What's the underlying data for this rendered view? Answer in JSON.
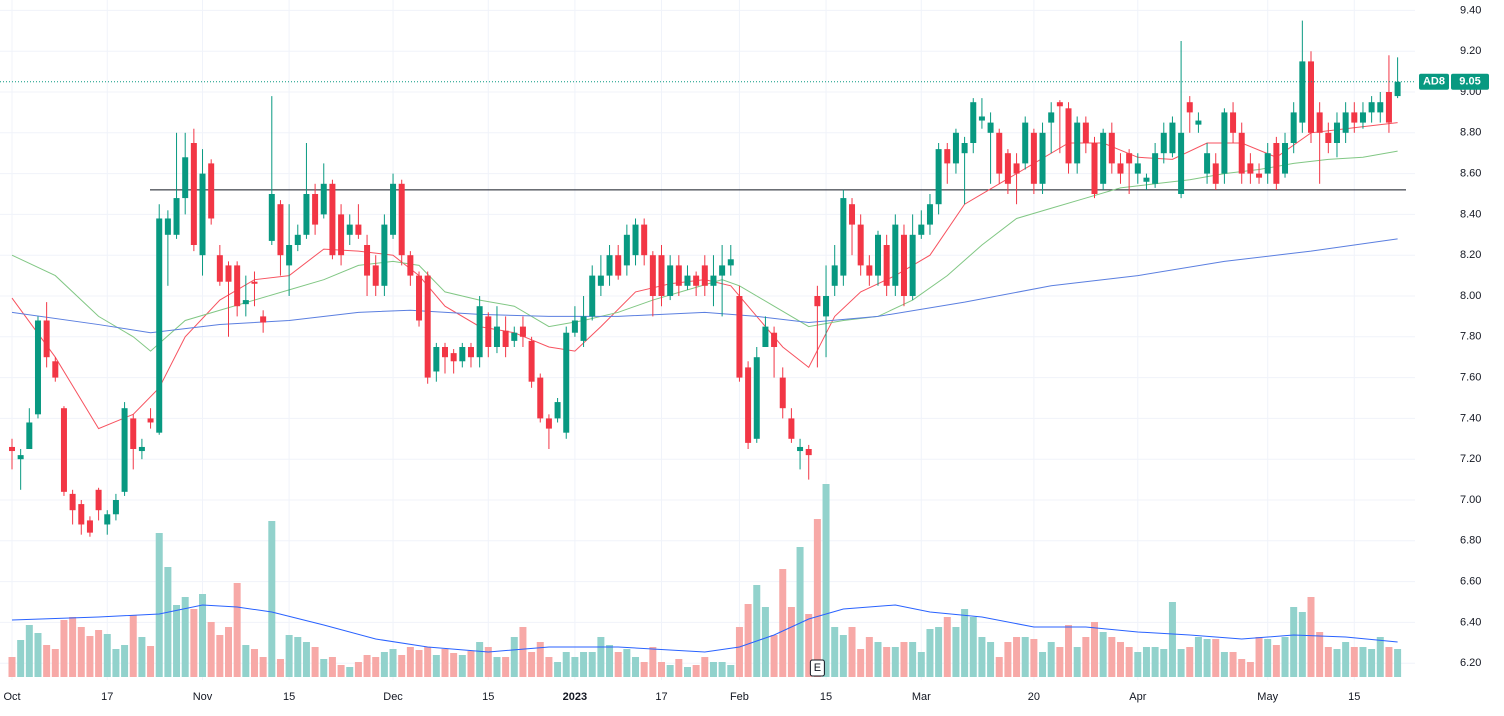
{
  "chart_data": {
    "type": "candlestick",
    "symbol": "AD8",
    "categories": [
      "Oct",
      null,
      null,
      null,
      null,
      null,
      null,
      null,
      null,
      null,
      null,
      "17",
      null,
      null,
      null,
      null,
      null,
      null,
      null,
      null,
      null,
      null,
      "Nov",
      null,
      null,
      null,
      null,
      null,
      null,
      null,
      null,
      null,
      "15",
      null,
      null,
      null,
      null,
      null,
      null,
      null,
      null,
      null,
      null,
      null,
      "Dec",
      null,
      null,
      null,
      null,
      null,
      null,
      null,
      null,
      null,
      null,
      "15",
      null,
      null,
      null,
      null,
      null,
      null,
      null,
      null,
      null,
      "2023",
      null,
      null,
      null,
      null,
      null,
      null,
      null,
      null,
      null,
      "17",
      null,
      null,
      null,
      null,
      null,
      null,
      null,
      null,
      "Feb",
      null,
      null,
      null,
      null,
      null,
      null,
      null,
      null,
      null,
      "15",
      null,
      null,
      null,
      null,
      null,
      null,
      null,
      null,
      null,
      null,
      "Mar",
      null,
      null,
      null,
      null,
      null,
      null,
      null,
      null,
      null,
      null,
      null,
      null,
      "20",
      null,
      null,
      null,
      null,
      null,
      null,
      null,
      null,
      null,
      null,
      null,
      "Apr",
      null,
      null,
      null,
      null,
      null,
      null,
      null,
      null,
      null,
      null,
      null,
      null,
      null,
      null,
      "May",
      null,
      null,
      null,
      null,
      null,
      null,
      null,
      null,
      null,
      "15",
      null,
      null,
      null,
      null,
      null
    ],
    "open": [
      7.26,
      7.2,
      7.25,
      7.42,
      7.88,
      7.68,
      7.45,
      7.03,
      6.98,
      6.9,
      7.05,
      6.88,
      6.93,
      7.04,
      7.4,
      7.24,
      7.4,
      7.33,
      8.3,
      8.3,
      8.48,
      8.75,
      8.2,
      8.65,
      8.2,
      8.15,
      8.15,
      7.96,
      8.07,
      7.9,
      8.27,
      8.45,
      8.15,
      8.25,
      8.3,
      8.5,
      8.4,
      8.55,
      8.4,
      8.3,
      8.35,
      8.25,
      8.15,
      8.05,
      8.3,
      8.55,
      8.2,
      8.1,
      8.1,
      7.63,
      7.75,
      7.72,
      7.68,
      7.75,
      7.7,
      7.9,
      7.75,
      7.83,
      7.78,
      7.85,
      7.78,
      7.6,
      7.4,
      7.4,
      7.33,
      7.82,
      7.78,
      7.9,
      8.05,
      8.1,
      8.2,
      8.15,
      8.2,
      8.35,
      8.2,
      8.2,
      8.0,
      8.15,
      8.05,
      8.1,
      8.15,
      8.05,
      8.1,
      8.15,
      8.0,
      7.65,
      7.3,
      7.75,
      7.82,
      7.6,
      7.4,
      7.24,
      7.25,
      8.0,
      7.9,
      8.05,
      8.1,
      8.45,
      8.35,
      8.15,
      8.1,
      8.25,
      8.05,
      8.3,
      8.0,
      8.3,
      8.35,
      8.45,
      8.72,
      8.65,
      8.7,
      8.75,
      8.86,
      8.8,
      8.8,
      8.7,
      8.65,
      8.65,
      8.8,
      8.55,
      8.85,
      8.95,
      8.92,
      8.65,
      8.85,
      8.75,
      8.55,
      8.8,
      8.65,
      8.7,
      8.6,
      8.56,
      8.55,
      8.7,
      8.7,
      8.5,
      8.95,
      8.84,
      8.6,
      8.65,
      8.6,
      8.9,
      8.8,
      8.65,
      8.6,
      8.6,
      8.75,
      8.6,
      8.75,
      8.85,
      9.15,
      8.9,
      8.8,
      8.75,
      8.8,
      8.9,
      8.85,
      8.9,
      8.9,
      9.0,
      8.98
    ],
    "high": [
      7.3,
      7.25,
      7.45,
      7.9,
      7.97,
      7.7,
      7.46,
      7.05,
      7.0,
      6.92,
      7.06,
      6.95,
      7.03,
      7.48,
      7.42,
      7.3,
      7.45,
      8.45,
      8.42,
      8.8,
      8.8,
      8.82,
      8.72,
      8.67,
      8.25,
      8.17,
      8.17,
      8.1,
      8.12,
      7.93,
      8.98,
      8.47,
      8.45,
      8.35,
      8.75,
      8.55,
      8.65,
      8.57,
      8.45,
      8.4,
      8.45,
      8.3,
      8.2,
      8.4,
      8.6,
      8.57,
      8.22,
      8.12,
      8.12,
      7.77,
      7.77,
      7.74,
      7.77,
      7.77,
      8.0,
      7.92,
      7.95,
      7.9,
      7.85,
      7.9,
      7.8,
      7.62,
      7.42,
      7.5,
      7.85,
      7.95,
      8.0,
      8.15,
      8.2,
      8.25,
      8.25,
      8.35,
      8.38,
      8.38,
      8.22,
      8.25,
      8.2,
      8.2,
      8.15,
      8.12,
      8.2,
      8.2,
      8.25,
      8.25,
      8.05,
      7.68,
      7.75,
      7.9,
      7.85,
      7.65,
      7.45,
      7.3,
      7.27,
      8.05,
      8.15,
      8.25,
      8.52,
      8.48,
      8.4,
      8.2,
      8.32,
      8.3,
      8.4,
      8.35,
      8.4,
      8.42,
      8.5,
      8.75,
      8.75,
      8.82,
      8.78,
      8.97,
      8.97,
      8.9,
      8.82,
      8.72,
      8.7,
      8.88,
      8.82,
      8.85,
      8.95,
      8.96,
      8.95,
      8.88,
      8.88,
      8.78,
      8.82,
      8.85,
      8.7,
      8.72,
      8.7,
      8.6,
      8.75,
      8.85,
      8.88,
      9.25,
      8.98,
      8.9,
      8.75,
      8.7,
      8.92,
      8.95,
      8.85,
      8.7,
      8.65,
      8.75,
      8.78,
      8.8,
      8.95,
      9.35,
      9.2,
      8.95,
      8.85,
      8.9,
      8.95,
      8.95,
      8.95,
      8.98,
      9.0,
      9.18,
      9.17
    ],
    "low": [
      7.15,
      7.05,
      7.25,
      7.4,
      7.65,
      7.58,
      7.02,
      6.88,
      6.83,
      6.82,
      6.9,
      6.83,
      6.9,
      7.02,
      7.15,
      7.2,
      7.35,
      7.32,
      8.05,
      8.28,
      8.4,
      8.22,
      8.1,
      8.35,
      8.05,
      7.8,
      7.9,
      7.9,
      7.95,
      7.82,
      8.25,
      8.1,
      8.0,
      8.22,
      8.28,
      8.3,
      8.38,
      8.18,
      8.15,
      8.25,
      8.28,
      8.0,
      8.0,
      8.0,
      8.28,
      8.15,
      8.05,
      7.85,
      7.57,
      7.58,
      7.62,
      7.62,
      7.65,
      7.65,
      7.65,
      7.7,
      7.72,
      7.7,
      7.75,
      7.75,
      7.55,
      7.38,
      7.25,
      7.38,
      7.3,
      7.8,
      7.75,
      7.88,
      8.0,
      8.05,
      8.08,
      8.1,
      8.15,
      8.15,
      7.9,
      7.95,
      7.98,
      8.0,
      8.03,
      8.0,
      8.0,
      7.95,
      7.9,
      8.1,
      7.58,
      7.25,
      7.28,
      7.75,
      7.6,
      7.4,
      7.28,
      7.15,
      7.1,
      7.65,
      7.7,
      8.0,
      8.05,
      8.2,
      8.1,
      8.05,
      8.05,
      8.0,
      8.0,
      7.95,
      7.98,
      8.28,
      8.3,
      8.4,
      8.55,
      8.6,
      8.45,
      8.7,
      8.82,
      8.55,
      8.55,
      8.5,
      8.45,
      8.62,
      8.5,
      8.5,
      8.7,
      8.7,
      8.6,
      8.6,
      8.7,
      8.48,
      8.52,
      8.6,
      8.55,
      8.5,
      8.55,
      8.52,
      8.53,
      8.65,
      8.68,
      8.48,
      8.8,
      8.8,
      8.55,
      8.52,
      8.55,
      8.75,
      8.55,
      8.55,
      8.55,
      8.55,
      8.52,
      8.58,
      8.7,
      8.8,
      8.75,
      8.55,
      8.7,
      8.68,
      8.75,
      8.8,
      8.82,
      8.85,
      8.85,
      8.8,
      8.97
    ],
    "close": [
      7.24,
      7.22,
      7.38,
      7.88,
      7.7,
      7.6,
      7.04,
      6.95,
      6.88,
      6.84,
      6.95,
      6.93,
      7.0,
      7.45,
      7.25,
      7.26,
      7.38,
      8.38,
      8.38,
      8.48,
      8.68,
      8.25,
      8.6,
      8.38,
      8.07,
      8.07,
      7.95,
      7.98,
      8.06,
      7.87,
      8.5,
      8.2,
      8.25,
      8.3,
      8.5,
      8.35,
      8.55,
      8.2,
      8.2,
      8.35,
      8.3,
      8.1,
      8.05,
      8.35,
      8.55,
      8.2,
      8.1,
      7.88,
      7.6,
      7.75,
      7.7,
      7.68,
      7.75,
      7.7,
      7.95,
      7.75,
      7.85,
      7.75,
      7.82,
      7.8,
      7.58,
      7.4,
      7.35,
      7.48,
      7.82,
      7.88,
      7.9,
      8.1,
      8.1,
      8.2,
      8.1,
      8.3,
      8.35,
      8.2,
      8.0,
      8.0,
      8.15,
      8.05,
      8.1,
      8.05,
      8.05,
      8.1,
      8.15,
      8.18,
      7.6,
      7.28,
      7.7,
      7.85,
      7.75,
      7.45,
      7.3,
      7.26,
      7.22,
      7.95,
      8.0,
      8.15,
      8.48,
      8.35,
      8.15,
      8.1,
      8.3,
      8.05,
      8.35,
      8.0,
      8.3,
      8.35,
      8.45,
      8.72,
      8.65,
      8.8,
      8.75,
      8.95,
      8.88,
      8.85,
      8.6,
      8.55,
      8.6,
      8.85,
      8.55,
      8.8,
      8.9,
      8.93,
      8.65,
      8.85,
      8.75,
      8.5,
      8.8,
      8.65,
      8.6,
      8.65,
      8.65,
      8.58,
      8.7,
      8.8,
      8.85,
      8.8,
      8.9,
      8.86,
      8.7,
      8.55,
      8.9,
      8.8,
      8.6,
      8.6,
      8.58,
      8.7,
      8.55,
      8.75,
      8.9,
      9.15,
      8.8,
      8.8,
      8.75,
      8.85,
      8.9,
      8.85,
      8.9,
      8.95,
      8.95,
      8.85,
      9.05
    ],
    "volume": [
      20,
      37,
      52,
      44,
      32,
      28,
      57,
      60,
      50,
      41,
      47,
      43,
      28,
      32,
      62,
      40,
      31,
      144,
      110,
      72,
      80,
      68,
      83,
      55,
      42,
      50,
      94,
      32,
      28,
      20,
      156,
      18,
      42,
      40,
      35,
      30,
      18,
      20,
      12,
      10,
      15,
      22,
      20,
      25,
      28,
      22,
      30,
      27,
      30,
      22,
      28,
      24,
      22,
      26,
      35,
      30,
      20,
      20,
      40,
      50,
      25,
      35,
      20,
      15,
      25,
      20,
      25,
      25,
      40,
      32,
      25,
      28,
      20,
      15,
      30,
      15,
      12,
      18,
      10,
      12,
      20,
      15,
      15,
      12,
      50,
      73,
      92,
      70,
      42,
      108,
      70,
      130,
      63,
      158,
      193,
      50,
      42,
      50,
      28,
      40,
      35,
      30,
      30,
      35,
      35,
      25,
      48,
      50,
      60,
      50,
      68,
      60,
      40,
      35,
      20,
      35,
      40,
      40,
      38,
      25,
      35,
      30,
      52,
      30,
      40,
      55,
      45,
      40,
      35,
      30,
      25,
      30,
      30,
      28,
      75,
      28,
      30,
      40,
      38,
      38,
      25,
      25,
      18,
      15,
      40,
      38,
      32,
      40,
      70,
      65,
      80,
      45,
      30,
      28,
      35,
      30,
      30,
      28,
      40,
      30,
      28
    ],
    "up_color": "#089981",
    "down_color": "#f23645",
    "up_volume_color": "#92d2cc",
    "down_volume_color": "#f7a9a7",
    "moving_averages": [
      {
        "color": "#f7525f",
        "x": [
          0,
          5,
          10,
          14,
          17,
          20,
          24,
          28,
          32,
          36,
          40,
          44,
          47,
          50,
          54,
          58,
          62,
          65,
          68,
          72,
          76,
          80,
          83,
          86,
          89,
          92,
          95,
          98,
          102,
          106,
          110,
          114,
          118,
          122,
          126,
          130,
          134,
          138,
          142,
          146,
          150,
          154,
          160
        ],
        "values": [
          7.99,
          7.7,
          7.35,
          7.42,
          7.55,
          7.8,
          7.98,
          8.08,
          8.1,
          8.23,
          8.22,
          8.2,
          8.1,
          7.95,
          7.85,
          7.82,
          7.75,
          7.73,
          7.85,
          8.02,
          8.06,
          8.08,
          8.05,
          7.9,
          7.75,
          7.65,
          7.9,
          8.02,
          8.1,
          8.2,
          8.45,
          8.55,
          8.65,
          8.75,
          8.75,
          8.68,
          8.67,
          8.75,
          8.75,
          8.68,
          8.8,
          8.82,
          8.85
        ]
      },
      {
        "color": "#81c784",
        "x": [
          0,
          5,
          10,
          14,
          16,
          20,
          24,
          28,
          32,
          36,
          40,
          44,
          47,
          50,
          54,
          58,
          62,
          66,
          70,
          74,
          78,
          82,
          84,
          88,
          92,
          96,
          100,
          104,
          108,
          112,
          116,
          120,
          124,
          128,
          132,
          136,
          140,
          144,
          148,
          152,
          156,
          160
        ],
        "values": [
          8.2,
          8.1,
          7.9,
          7.8,
          7.73,
          7.88,
          7.93,
          7.98,
          8.03,
          8.08,
          8.15,
          8.17,
          8.15,
          8.02,
          7.98,
          7.95,
          7.85,
          7.88,
          7.92,
          7.98,
          8.03,
          8.08,
          8.05,
          7.95,
          7.85,
          7.88,
          7.9,
          7.98,
          8.1,
          8.25,
          8.38,
          8.43,
          8.48,
          8.53,
          8.55,
          8.57,
          8.6,
          8.62,
          8.65,
          8.67,
          8.68,
          8.71
        ]
      },
      {
        "color": "#5b7fe0",
        "x": [
          0,
          10,
          16,
          24,
          32,
          40,
          46,
          54,
          62,
          70,
          80,
          86,
          92,
          100,
          110,
          120,
          130,
          140,
          150,
          160
        ],
        "values": [
          7.92,
          7.86,
          7.82,
          7.86,
          7.88,
          7.92,
          7.93,
          7.91,
          7.9,
          7.9,
          7.92,
          7.9,
          7.87,
          7.9,
          7.97,
          8.05,
          8.1,
          8.17,
          8.22,
          8.28
        ]
      }
    ],
    "volume_average": {
      "color": "#2962ff",
      "x": [
        0,
        10,
        17,
        22,
        26,
        30,
        36,
        42,
        48,
        55,
        62,
        70,
        80,
        84,
        88,
        92,
        96,
        102,
        106,
        112,
        118,
        124,
        130,
        136,
        142,
        148,
        154,
        160
      ],
      "values": [
        57,
        60,
        63,
        72,
        70,
        65,
        52,
        38,
        30,
        25,
        30,
        30,
        25,
        30,
        42,
        58,
        68,
        72,
        65,
        60,
        50,
        50,
        45,
        42,
        38,
        42,
        40,
        35
      ]
    },
    "level_line": 8.52,
    "events": [
      {
        "label": "E",
        "x": 93
      }
    ],
    "ylim": [
      6.1,
      9.45
    ],
    "yticks": [
      {
        "value": 6.2,
        "label": "6.20"
      },
      {
        "value": 6.4,
        "label": "6.40"
      },
      {
        "value": 6.6,
        "label": "6.60"
      },
      {
        "value": 6.8,
        "label": "6.80"
      },
      {
        "value": 7,
        "label": "7.00"
      },
      {
        "value": 7.2,
        "label": "7.20"
      },
      {
        "value": 7.4,
        "label": "7.40"
      },
      {
        "value": 7.6,
        "label": "7.60"
      },
      {
        "value": 7.8,
        "label": "7.80"
      },
      {
        "value": 8,
        "label": "8.00"
      },
      {
        "value": 8.2,
        "label": "8.20"
      },
      {
        "value": 8.4,
        "label": "8.40"
      },
      {
        "value": 8.6,
        "label": "8.60"
      },
      {
        "value": 8.8,
        "label": "8.80"
      },
      {
        "value": 9,
        "label": "9.00"
      },
      {
        "value": 9.2,
        "label": "9.20"
      },
      {
        "value": 9.4,
        "label": "9.40"
      }
    ],
    "grid": true
  }
}
